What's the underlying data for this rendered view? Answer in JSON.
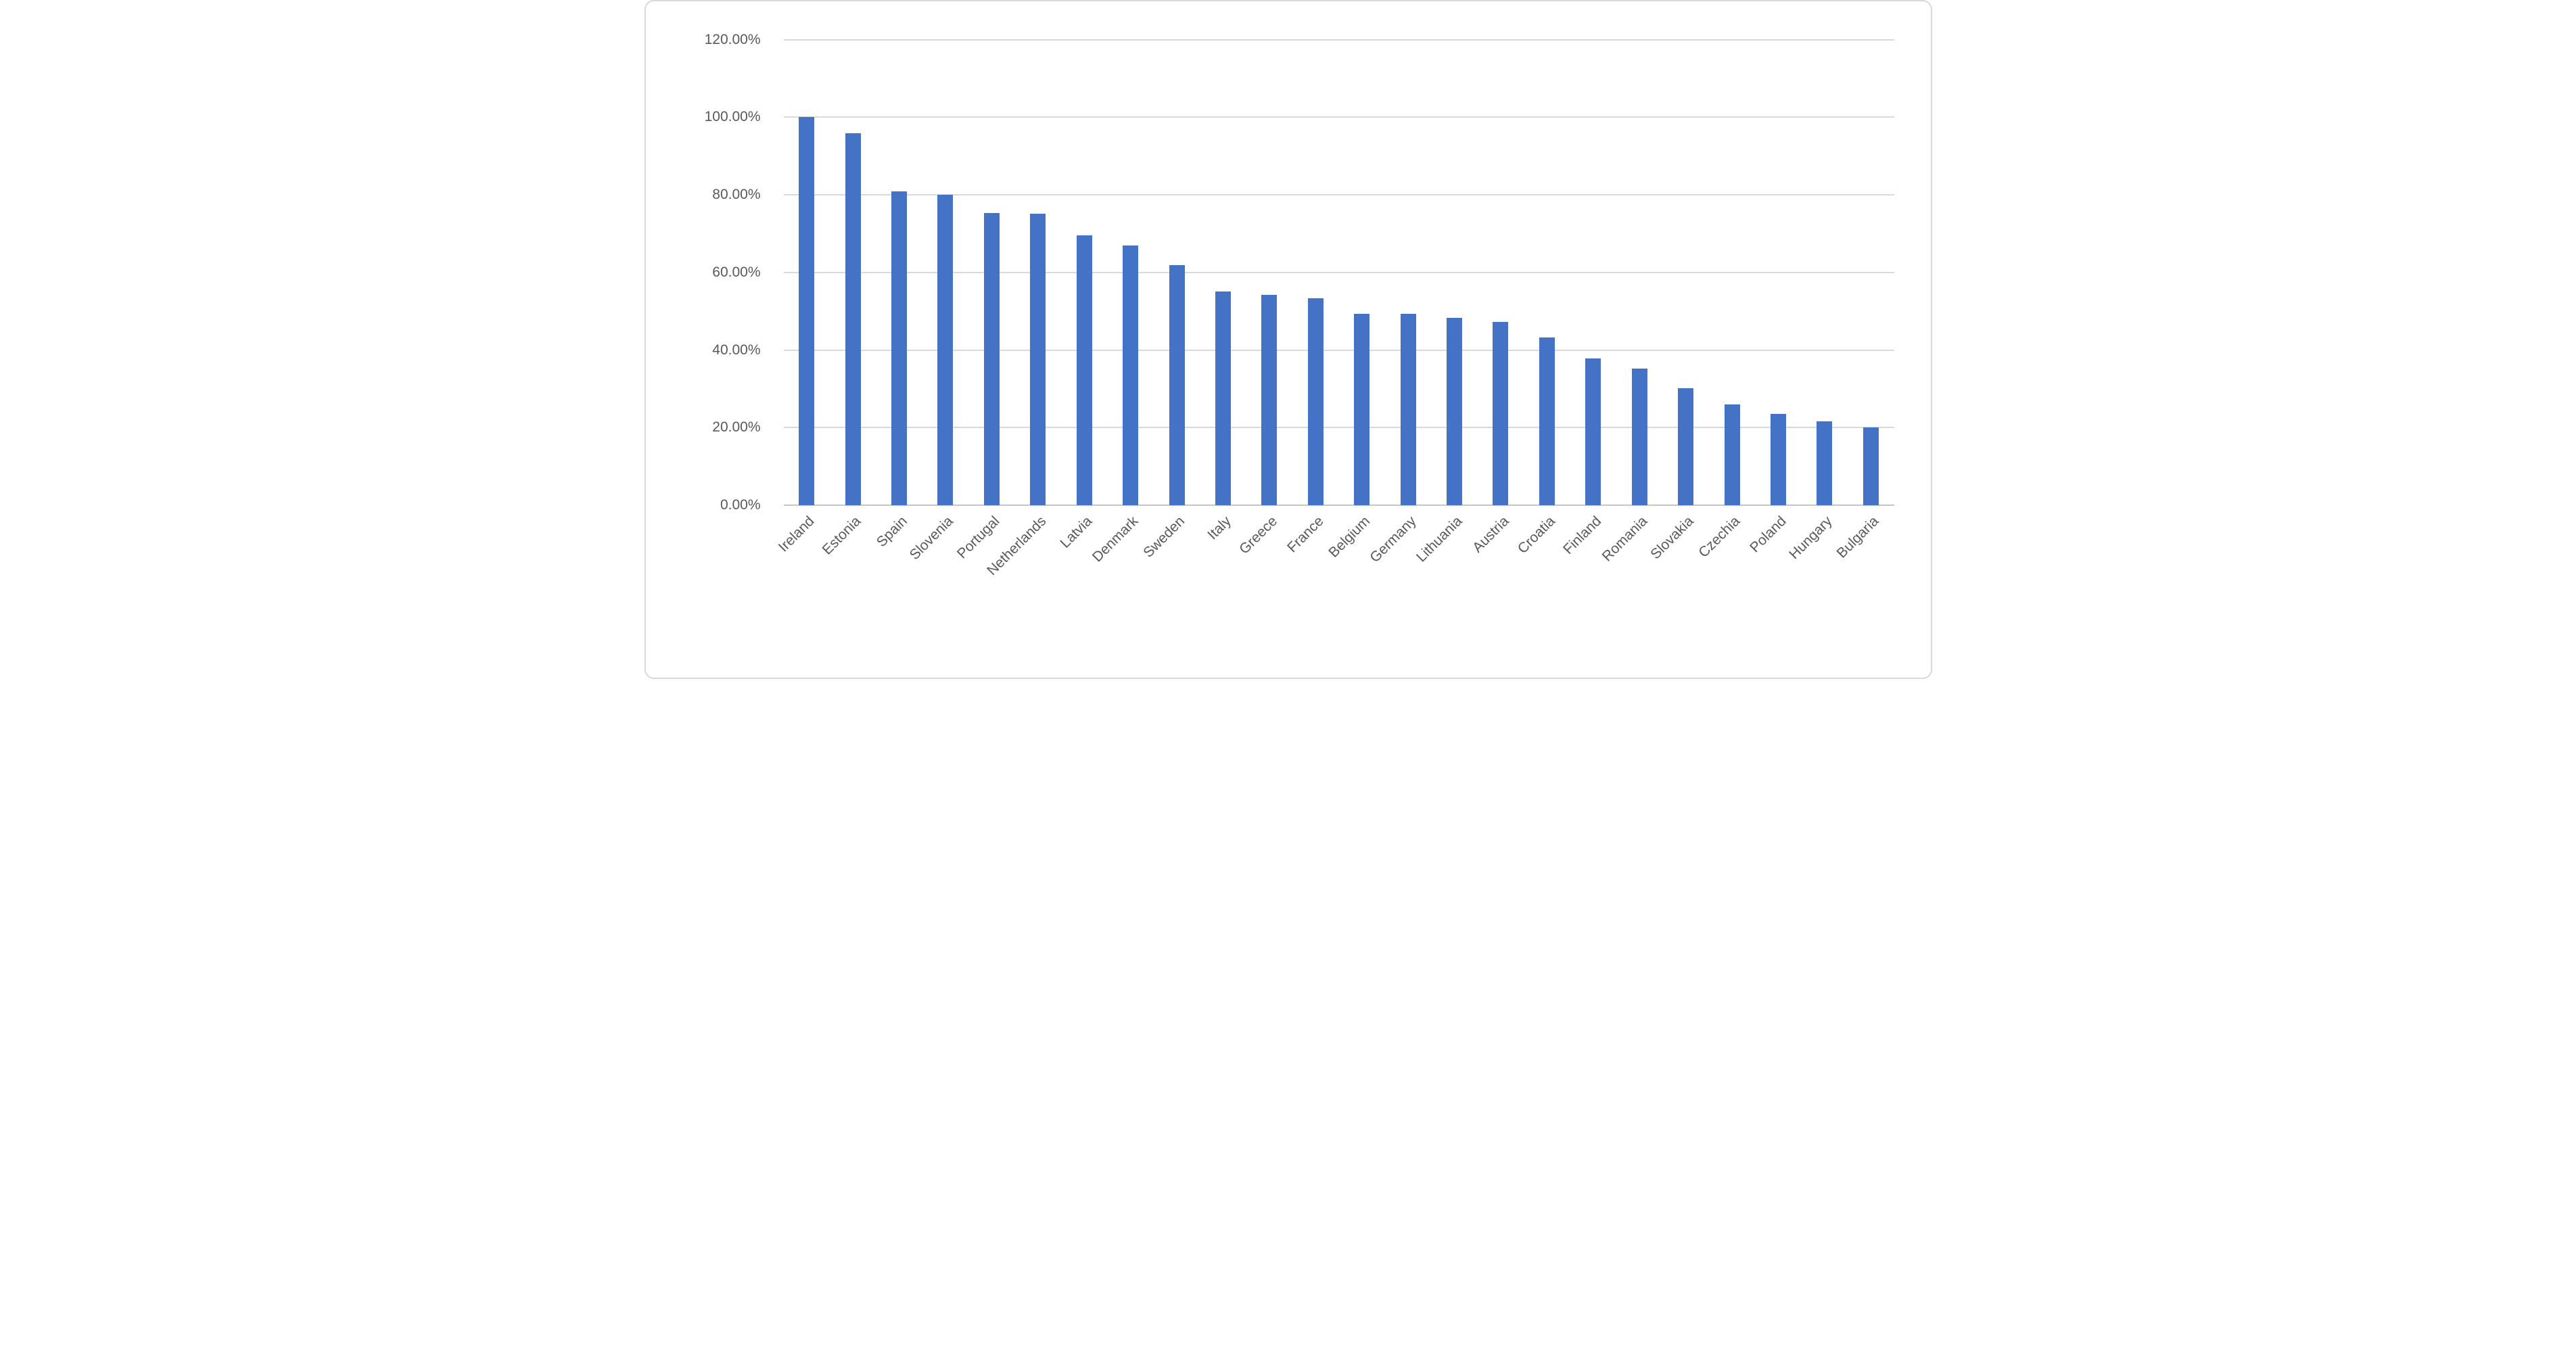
{
  "chart_data": {
    "type": "bar",
    "title": "",
    "xlabel": "",
    "ylabel": "",
    "legend": false,
    "grid": true,
    "value_format": "percent",
    "categories": [
      "Ireland",
      "Estonia",
      "Spain",
      "Slovenia",
      "Portugal",
      "Netherlands",
      "Latvia",
      "Denmark",
      "Sweden",
      "Italy",
      "Greece",
      "France",
      "Belgium",
      "Germany",
      "Lithuania",
      "Austria",
      "Croatia",
      "Finland",
      "Romania",
      "Slovakia",
      "Czechia",
      "Poland",
      "Hungary",
      "Bulgaria"
    ],
    "values": [
      100.0,
      95.8,
      80.8,
      80.0,
      75.3,
      75.2,
      69.5,
      66.9,
      61.9,
      55.0,
      54.2,
      53.3,
      49.3,
      49.3,
      48.3,
      47.3,
      43.3,
      37.9,
      35.2,
      30.2,
      26.0,
      23.5,
      21.6,
      20.0
    ],
    "y_axis": {
      "min": 0,
      "max": 120,
      "step": 20,
      "tick_labels": [
        "0.00%",
        "20.00%",
        "40.00%",
        "60.00%",
        "80.00%",
        "100.00%",
        "120.00%"
      ]
    },
    "colors": {
      "bar": "#4472C4",
      "gridline": "#D9D9D9",
      "axis_line": "#C6C6C6",
      "tick_text": "#595959",
      "background": "#FFFFFF",
      "border": "#D9D9D9"
    }
  }
}
